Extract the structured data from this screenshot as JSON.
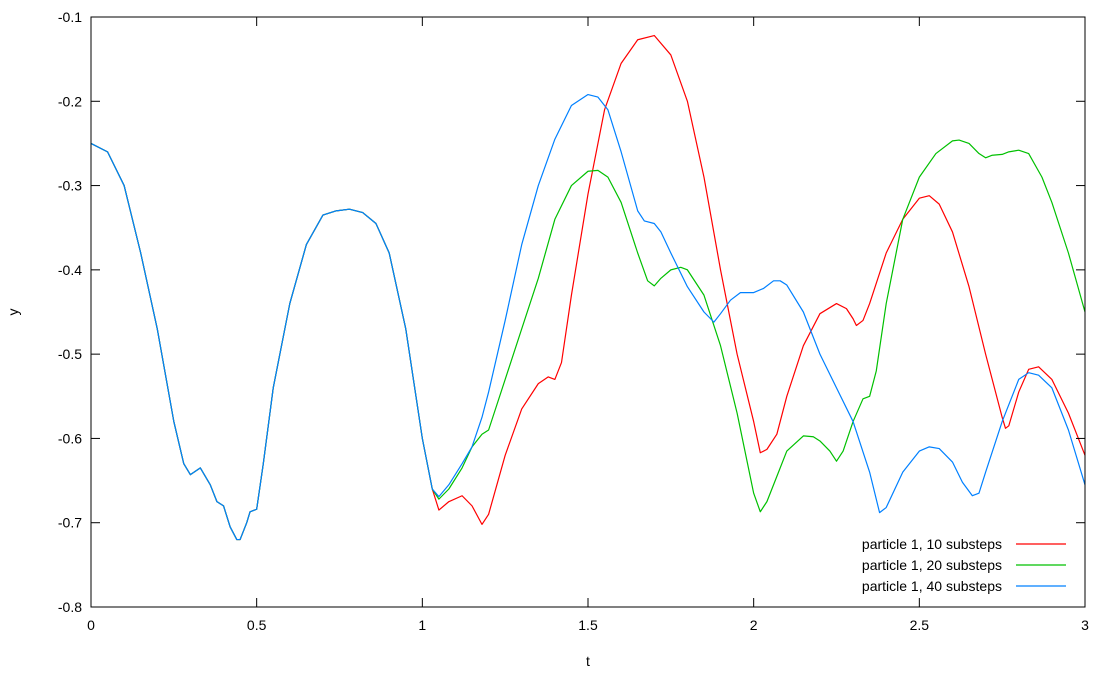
{
  "chart_data": {
    "type": "line",
    "title": "",
    "xlabel": "t",
    "ylabel": "y",
    "xlim": [
      0,
      3
    ],
    "ylim": [
      -0.8,
      -0.1
    ],
    "x_ticks": [
      "0",
      "0.5",
      "1",
      "1.5",
      "2",
      "2.5",
      "3"
    ],
    "y_ticks": [
      "-0.8",
      "-0.7",
      "-0.6",
      "-0.5",
      "-0.4",
      "-0.3",
      "-0.2",
      "-0.1"
    ],
    "grid": false,
    "legend_position": "bottom-right",
    "series": [
      {
        "name": "particle 1, 10 substeps",
        "color": "#ff0000",
        "points": [
          [
            0,
            -0.25
          ],
          [
            0.05,
            -0.26
          ],
          [
            0.1,
            -0.3
          ],
          [
            0.15,
            -0.38
          ],
          [
            0.2,
            -0.47
          ],
          [
            0.25,
            -0.58
          ],
          [
            0.28,
            -0.63
          ],
          [
            0.3,
            -0.643
          ],
          [
            0.33,
            -0.635
          ],
          [
            0.36,
            -0.655
          ],
          [
            0.38,
            -0.675
          ],
          [
            0.4,
            -0.68
          ],
          [
            0.42,
            -0.705
          ],
          [
            0.44,
            -0.72
          ],
          [
            0.45,
            -0.72
          ],
          [
            0.47,
            -0.7
          ],
          [
            0.48,
            -0.687
          ],
          [
            0.5,
            -0.684
          ],
          [
            0.52,
            -0.63
          ],
          [
            0.55,
            -0.54
          ],
          [
            0.6,
            -0.44
          ],
          [
            0.65,
            -0.37
          ],
          [
            0.7,
            -0.335
          ],
          [
            0.74,
            -0.33
          ],
          [
            0.78,
            -0.328
          ],
          [
            0.82,
            -0.332
          ],
          [
            0.86,
            -0.345
          ],
          [
            0.9,
            -0.38
          ],
          [
            0.95,
            -0.47
          ],
          [
            1.0,
            -0.6
          ],
          [
            1.03,
            -0.66
          ],
          [
            1.05,
            -0.685
          ],
          [
            1.08,
            -0.675
          ],
          [
            1.12,
            -0.668
          ],
          [
            1.15,
            -0.68
          ],
          [
            1.18,
            -0.702
          ],
          [
            1.2,
            -0.69
          ],
          [
            1.25,
            -0.62
          ],
          [
            1.3,
            -0.565
          ],
          [
            1.35,
            -0.535
          ],
          [
            1.38,
            -0.527
          ],
          [
            1.4,
            -0.53
          ],
          [
            1.42,
            -0.51
          ],
          [
            1.45,
            -0.43
          ],
          [
            1.5,
            -0.31
          ],
          [
            1.55,
            -0.21
          ],
          [
            1.6,
            -0.155
          ],
          [
            1.65,
            -0.127
          ],
          [
            1.7,
            -0.122
          ],
          [
            1.75,
            -0.145
          ],
          [
            1.8,
            -0.2
          ],
          [
            1.85,
            -0.29
          ],
          [
            1.9,
            -0.4
          ],
          [
            1.95,
            -0.5
          ],
          [
            2.0,
            -0.58
          ],
          [
            2.02,
            -0.617
          ],
          [
            2.04,
            -0.613
          ],
          [
            2.07,
            -0.595
          ],
          [
            2.1,
            -0.55
          ],
          [
            2.15,
            -0.49
          ],
          [
            2.2,
            -0.452
          ],
          [
            2.25,
            -0.44
          ],
          [
            2.28,
            -0.446
          ],
          [
            2.3,
            -0.458
          ],
          [
            2.31,
            -0.466
          ],
          [
            2.33,
            -0.46
          ],
          [
            2.35,
            -0.44
          ],
          [
            2.4,
            -0.38
          ],
          [
            2.45,
            -0.34
          ],
          [
            2.5,
            -0.315
          ],
          [
            2.53,
            -0.312
          ],
          [
            2.56,
            -0.322
          ],
          [
            2.6,
            -0.355
          ],
          [
            2.65,
            -0.42
          ],
          [
            2.7,
            -0.5
          ],
          [
            2.75,
            -0.575
          ],
          [
            2.76,
            -0.588
          ],
          [
            2.77,
            -0.585
          ],
          [
            2.8,
            -0.545
          ],
          [
            2.83,
            -0.518
          ],
          [
            2.86,
            -0.515
          ],
          [
            2.9,
            -0.53
          ],
          [
            2.95,
            -0.57
          ],
          [
            3.0,
            -0.62
          ]
        ]
      },
      {
        "name": "particle 1, 20 substeps",
        "color": "#00c000",
        "points": [
          [
            0,
            -0.25
          ],
          [
            0.05,
            -0.26
          ],
          [
            0.1,
            -0.3
          ],
          [
            0.15,
            -0.38
          ],
          [
            0.2,
            -0.47
          ],
          [
            0.25,
            -0.58
          ],
          [
            0.28,
            -0.63
          ],
          [
            0.3,
            -0.643
          ],
          [
            0.33,
            -0.635
          ],
          [
            0.36,
            -0.655
          ],
          [
            0.38,
            -0.675
          ],
          [
            0.4,
            -0.68
          ],
          [
            0.42,
            -0.705
          ],
          [
            0.44,
            -0.72
          ],
          [
            0.45,
            -0.72
          ],
          [
            0.47,
            -0.7
          ],
          [
            0.48,
            -0.687
          ],
          [
            0.5,
            -0.684
          ],
          [
            0.52,
            -0.63
          ],
          [
            0.55,
            -0.54
          ],
          [
            0.6,
            -0.44
          ],
          [
            0.65,
            -0.37
          ],
          [
            0.7,
            -0.335
          ],
          [
            0.74,
            -0.33
          ],
          [
            0.78,
            -0.328
          ],
          [
            0.82,
            -0.332
          ],
          [
            0.86,
            -0.345
          ],
          [
            0.9,
            -0.38
          ],
          [
            0.95,
            -0.47
          ],
          [
            1.0,
            -0.6
          ],
          [
            1.03,
            -0.66
          ],
          [
            1.05,
            -0.672
          ],
          [
            1.08,
            -0.66
          ],
          [
            1.12,
            -0.635
          ],
          [
            1.15,
            -0.61
          ],
          [
            1.18,
            -0.595
          ],
          [
            1.2,
            -0.59
          ],
          [
            1.25,
            -0.53
          ],
          [
            1.3,
            -0.47
          ],
          [
            1.35,
            -0.41
          ],
          [
            1.4,
            -0.34
          ],
          [
            1.45,
            -0.3
          ],
          [
            1.5,
            -0.283
          ],
          [
            1.53,
            -0.282
          ],
          [
            1.56,
            -0.29
          ],
          [
            1.6,
            -0.32
          ],
          [
            1.65,
            -0.38
          ],
          [
            1.68,
            -0.413
          ],
          [
            1.7,
            -0.419
          ],
          [
            1.72,
            -0.41
          ],
          [
            1.75,
            -0.4
          ],
          [
            1.78,
            -0.397
          ],
          [
            1.8,
            -0.4
          ],
          [
            1.85,
            -0.43
          ],
          [
            1.9,
            -0.49
          ],
          [
            1.95,
            -0.57
          ],
          [
            2.0,
            -0.665
          ],
          [
            2.02,
            -0.687
          ],
          [
            2.04,
            -0.675
          ],
          [
            2.07,
            -0.645
          ],
          [
            2.1,
            -0.615
          ],
          [
            2.15,
            -0.597
          ],
          [
            2.18,
            -0.598
          ],
          [
            2.2,
            -0.603
          ],
          [
            2.23,
            -0.615
          ],
          [
            2.25,
            -0.627
          ],
          [
            2.27,
            -0.615
          ],
          [
            2.3,
            -0.58
          ],
          [
            2.33,
            -0.553
          ],
          [
            2.35,
            -0.55
          ],
          [
            2.37,
            -0.52
          ],
          [
            2.4,
            -0.44
          ],
          [
            2.45,
            -0.34
          ],
          [
            2.5,
            -0.29
          ],
          [
            2.55,
            -0.262
          ],
          [
            2.6,
            -0.247
          ],
          [
            2.62,
            -0.246
          ],
          [
            2.65,
            -0.25
          ],
          [
            2.68,
            -0.262
          ],
          [
            2.7,
            -0.267
          ],
          [
            2.72,
            -0.264
          ],
          [
            2.75,
            -0.263
          ],
          [
            2.77,
            -0.26
          ],
          [
            2.8,
            -0.258
          ],
          [
            2.83,
            -0.262
          ],
          [
            2.87,
            -0.29
          ],
          [
            2.9,
            -0.32
          ],
          [
            2.95,
            -0.38
          ],
          [
            3.0,
            -0.45
          ]
        ]
      },
      {
        "name": "particle 1, 40 substeps",
        "color": "#0080ff",
        "points": [
          [
            0,
            -0.25
          ],
          [
            0.05,
            -0.26
          ],
          [
            0.1,
            -0.3
          ],
          [
            0.15,
            -0.38
          ],
          [
            0.2,
            -0.47
          ],
          [
            0.25,
            -0.58
          ],
          [
            0.28,
            -0.63
          ],
          [
            0.3,
            -0.643
          ],
          [
            0.33,
            -0.635
          ],
          [
            0.36,
            -0.655
          ],
          [
            0.38,
            -0.675
          ],
          [
            0.4,
            -0.68
          ],
          [
            0.42,
            -0.705
          ],
          [
            0.44,
            -0.72
          ],
          [
            0.45,
            -0.72
          ],
          [
            0.47,
            -0.7
          ],
          [
            0.48,
            -0.687
          ],
          [
            0.5,
            -0.684
          ],
          [
            0.52,
            -0.63
          ],
          [
            0.55,
            -0.54
          ],
          [
            0.6,
            -0.44
          ],
          [
            0.65,
            -0.37
          ],
          [
            0.7,
            -0.335
          ],
          [
            0.74,
            -0.33
          ],
          [
            0.78,
            -0.328
          ],
          [
            0.82,
            -0.332
          ],
          [
            0.86,
            -0.345
          ],
          [
            0.9,
            -0.38
          ],
          [
            0.95,
            -0.47
          ],
          [
            1.0,
            -0.6
          ],
          [
            1.03,
            -0.66
          ],
          [
            1.05,
            -0.669
          ],
          [
            1.08,
            -0.655
          ],
          [
            1.12,
            -0.63
          ],
          [
            1.15,
            -0.61
          ],
          [
            1.18,
            -0.575
          ],
          [
            1.2,
            -0.545
          ],
          [
            1.25,
            -0.46
          ],
          [
            1.3,
            -0.37
          ],
          [
            1.35,
            -0.3
          ],
          [
            1.4,
            -0.245
          ],
          [
            1.45,
            -0.205
          ],
          [
            1.5,
            -0.192
          ],
          [
            1.53,
            -0.195
          ],
          [
            1.56,
            -0.21
          ],
          [
            1.6,
            -0.26
          ],
          [
            1.65,
            -0.33
          ],
          [
            1.67,
            -0.342
          ],
          [
            1.7,
            -0.345
          ],
          [
            1.72,
            -0.355
          ],
          [
            1.75,
            -0.38
          ],
          [
            1.8,
            -0.42
          ],
          [
            1.85,
            -0.45
          ],
          [
            1.88,
            -0.462
          ],
          [
            1.9,
            -0.452
          ],
          [
            1.93,
            -0.436
          ],
          [
            1.96,
            -0.427
          ],
          [
            2.0,
            -0.427
          ],
          [
            2.03,
            -0.422
          ],
          [
            2.06,
            -0.413
          ],
          [
            2.08,
            -0.413
          ],
          [
            2.1,
            -0.418
          ],
          [
            2.15,
            -0.45
          ],
          [
            2.2,
            -0.5
          ],
          [
            2.25,
            -0.54
          ],
          [
            2.3,
            -0.58
          ],
          [
            2.35,
            -0.64
          ],
          [
            2.38,
            -0.688
          ],
          [
            2.4,
            -0.682
          ],
          [
            2.45,
            -0.64
          ],
          [
            2.5,
            -0.615
          ],
          [
            2.53,
            -0.61
          ],
          [
            2.56,
            -0.612
          ],
          [
            2.6,
            -0.628
          ],
          [
            2.63,
            -0.652
          ],
          [
            2.66,
            -0.668
          ],
          [
            2.68,
            -0.665
          ],
          [
            2.7,
            -0.64
          ],
          [
            2.75,
            -0.58
          ],
          [
            2.8,
            -0.53
          ],
          [
            2.83,
            -0.522
          ],
          [
            2.86,
            -0.525
          ],
          [
            2.9,
            -0.54
          ],
          [
            2.95,
            -0.59
          ],
          [
            3.0,
            -0.655
          ]
        ]
      }
    ]
  }
}
